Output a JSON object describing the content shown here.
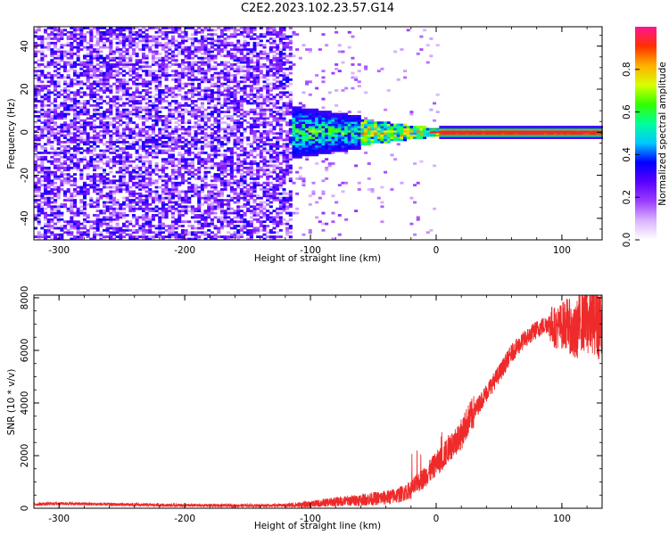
{
  "chart_data": [
    {
      "type": "heatmap",
      "title": "C2E2.2023.102.23.57.G14",
      "xlabel": "Height of straight line (km)",
      "ylabel": "Frequency (Hz)",
      "xlim": [
        -320,
        132
      ],
      "ylim": [
        -50,
        49
      ],
      "x_ticks": [
        -300,
        -200,
        -100,
        0,
        100
      ],
      "x_tick_labels": [
        "-300",
        "-200",
        "-100",
        "0",
        "100"
      ],
      "y_ticks": [
        -40,
        -20,
        0,
        20,
        40
      ],
      "y_tick_labels": [
        "-40",
        "-20",
        "0",
        "20",
        "40"
      ],
      "colorbar": {
        "label": "Normalized spectral amplitude",
        "range": [
          0,
          1
        ],
        "ticks": [
          0.0,
          0.2,
          0.4,
          0.6,
          0.8
        ],
        "tick_labels": [
          "0.0",
          "0.2",
          "0.4",
          "0.6",
          "0.8"
        ],
        "colormap": [
          "#ffffff",
          "#d9b3ff",
          "#9b3dff",
          "#5a00ff",
          "#0000ff",
          "#00c8ff",
          "#00ff9a",
          "#33ff00",
          "#d8ff00",
          "#ffb000",
          "#ff3000",
          "#ff1493"
        ]
      },
      "description_regions": [
        {
          "x": [
            -320,
            -115
          ],
          "amplitude": 0.2,
          "freq_spread": [
            -50,
            49
          ]
        },
        {
          "x": [
            -115,
            -60
          ],
          "amplitude": 0.35,
          "freq_spread": [
            -10,
            10
          ]
        },
        {
          "x": [
            -60,
            0
          ],
          "amplitude": 0.55,
          "freq_spread": [
            -3,
            3
          ]
        },
        {
          "x": [
            0,
            132
          ],
          "amplitude": 0.95,
          "freq_spread": [
            -0.5,
            0.5
          ]
        }
      ],
      "line_frequency": 0,
      "grid": false
    },
    {
      "type": "line",
      "title": "",
      "xlabel": "Height of straight line (km)",
      "ylabel": "SNR (10 * v/v)",
      "xlim": [
        -320,
        132
      ],
      "ylim": [
        0,
        8100
      ],
      "x_ticks": [
        -300,
        -200,
        -100,
        0,
        100
      ],
      "x_tick_labels": [
        "-300",
        "-200",
        "-100",
        "0",
        "100"
      ],
      "y_ticks": [
        0,
        2000,
        4000,
        6000,
        8000
      ],
      "y_tick_labels": [
        "0",
        "2000",
        "4000",
        "6000",
        "8000"
      ],
      "line_color": "#ee2a2a",
      "grid": false,
      "series": [
        {
          "x": [
            -320,
            -300,
            -250,
            -200,
            -150,
            -120,
            -100,
            -80,
            -60,
            -40,
            -30,
            -20,
            -15,
            -10,
            -5,
            0,
            5,
            10,
            15,
            20,
            25,
            30,
            40,
            50,
            60,
            70,
            80,
            90,
            95,
            100,
            105,
            110,
            115,
            120,
            125,
            130
          ],
          "values": [
            150,
            180,
            140,
            110,
            100,
            110,
            150,
            250,
            320,
            400,
            500,
            700,
            950,
            1150,
            1400,
            1700,
            1900,
            2300,
            2550,
            2800,
            3300,
            3650,
            4400,
            5100,
            5900,
            6400,
            6800,
            7050,
            6850,
            6950,
            7050,
            6500,
            7200,
            7050,
            7300,
            7100
          ]
        }
      ]
    }
  ]
}
